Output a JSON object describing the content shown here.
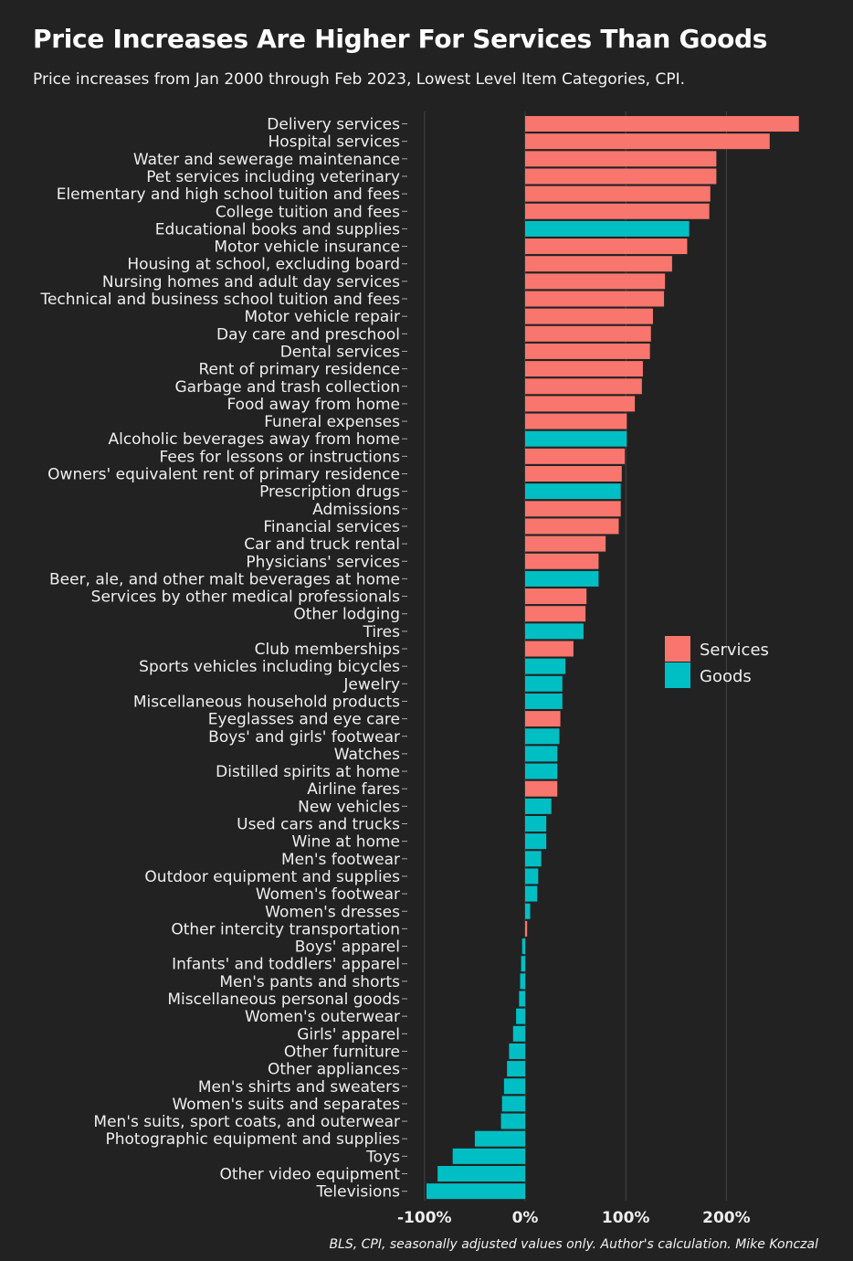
{
  "title": "Price Increases Are Higher For Services Than Goods",
  "subtitle": "Price increases from Jan 2000 through Feb 2023, Lowest Level Item Categories, CPI.",
  "source": "BLS, CPI, seasonally adjusted values only. Author's calculation. Mike Konczal",
  "colors": {
    "services": "#f8766d",
    "goods": "#00bfc4",
    "background": "#222222",
    "grid": "#444444"
  },
  "chart_data": {
    "type": "bar",
    "orientation": "horizontal",
    "title": "Price Increases Are Higher For Services Than Goods",
    "xlim": [
      -100,
      275
    ],
    "xticks": [
      -100,
      0,
      100,
      200
    ],
    "xtick_labels": [
      "-100%",
      "0%",
      "100%",
      "200%"
    ],
    "grid": true,
    "legend_position": "right",
    "legend": [
      {
        "name": "Services",
        "color": "#f8766d"
      },
      {
        "name": "Goods",
        "color": "#00bfc4"
      }
    ],
    "categories": [
      "Delivery services",
      "Hospital services",
      "Water and sewerage maintenance",
      "Pet services including veterinary",
      "Elementary and high school tuition and fees",
      "College tuition and fees",
      "Educational books and supplies",
      "Motor vehicle insurance",
      "Housing at school, excluding board",
      "Nursing homes and adult day services",
      "Technical and business school tuition and fees",
      "Motor vehicle repair",
      "Day care and preschool",
      "Dental services",
      "Rent of primary residence",
      "Garbage and trash collection",
      "Food away from home",
      "Funeral expenses",
      "Alcoholic beverages away from home",
      "Fees for lessons or instructions",
      "Owners' equivalent rent of primary residence",
      "Prescription drugs",
      "Admissions",
      "Financial services",
      "Car and truck rental",
      "Physicians' services",
      "Beer, ale, and other malt beverages at home",
      "Services by other medical professionals",
      "Other lodging",
      "Tires",
      "Club memberships",
      "Sports vehicles including bicycles",
      "Jewelry",
      "Miscellaneous household products",
      "Eyeglasses and eye care",
      "Boys' and girls' footwear",
      "Watches",
      "Distilled spirits at home",
      "Airline fares",
      "New vehicles",
      "Used cars and trucks",
      "Wine at home",
      "Men's footwear",
      "Outdoor equipment and supplies",
      "Women's footwear",
      "Women's dresses",
      "Other intercity transportation",
      "Boys' apparel",
      "Infants' and toddlers' apparel",
      "Men's pants and shorts",
      "Miscellaneous personal goods",
      "Women's outerwear",
      "Girls' apparel",
      "Other furniture",
      "Other appliances",
      "Men's shirts and sweaters",
      "Women's suits and separates",
      "Men's suits, sport coats, and outerwear",
      "Photographic equipment and supplies",
      "Toys",
      "Other video equipment",
      "Televisions"
    ],
    "values": [
      272,
      243,
      190,
      190,
      184,
      183,
      163,
      161,
      146,
      139,
      138,
      127,
      125,
      124,
      117,
      116,
      109,
      101,
      101,
      99,
      96,
      95,
      95,
      93,
      80,
      73,
      73,
      61,
      60,
      58,
      48,
      40,
      37,
      37,
      35,
      34,
      32,
      32,
      32,
      26,
      21,
      21,
      16,
      13,
      12,
      5,
      2,
      -3,
      -4,
      -5,
      -6,
      -9,
      -12,
      -16,
      -18,
      -21,
      -23,
      -24,
      -50,
      -72,
      -87,
      -98
    ],
    "groups": [
      "Services",
      "Services",
      "Services",
      "Services",
      "Services",
      "Services",
      "Goods",
      "Services",
      "Services",
      "Services",
      "Services",
      "Services",
      "Services",
      "Services",
      "Services",
      "Services",
      "Services",
      "Services",
      "Goods",
      "Services",
      "Services",
      "Goods",
      "Services",
      "Services",
      "Services",
      "Services",
      "Goods",
      "Services",
      "Services",
      "Goods",
      "Services",
      "Goods",
      "Goods",
      "Goods",
      "Services",
      "Goods",
      "Goods",
      "Goods",
      "Services",
      "Goods",
      "Goods",
      "Goods",
      "Goods",
      "Goods",
      "Goods",
      "Goods",
      "Services",
      "Goods",
      "Goods",
      "Goods",
      "Goods",
      "Goods",
      "Goods",
      "Goods",
      "Goods",
      "Goods",
      "Goods",
      "Goods",
      "Goods",
      "Goods",
      "Goods",
      "Goods"
    ]
  }
}
